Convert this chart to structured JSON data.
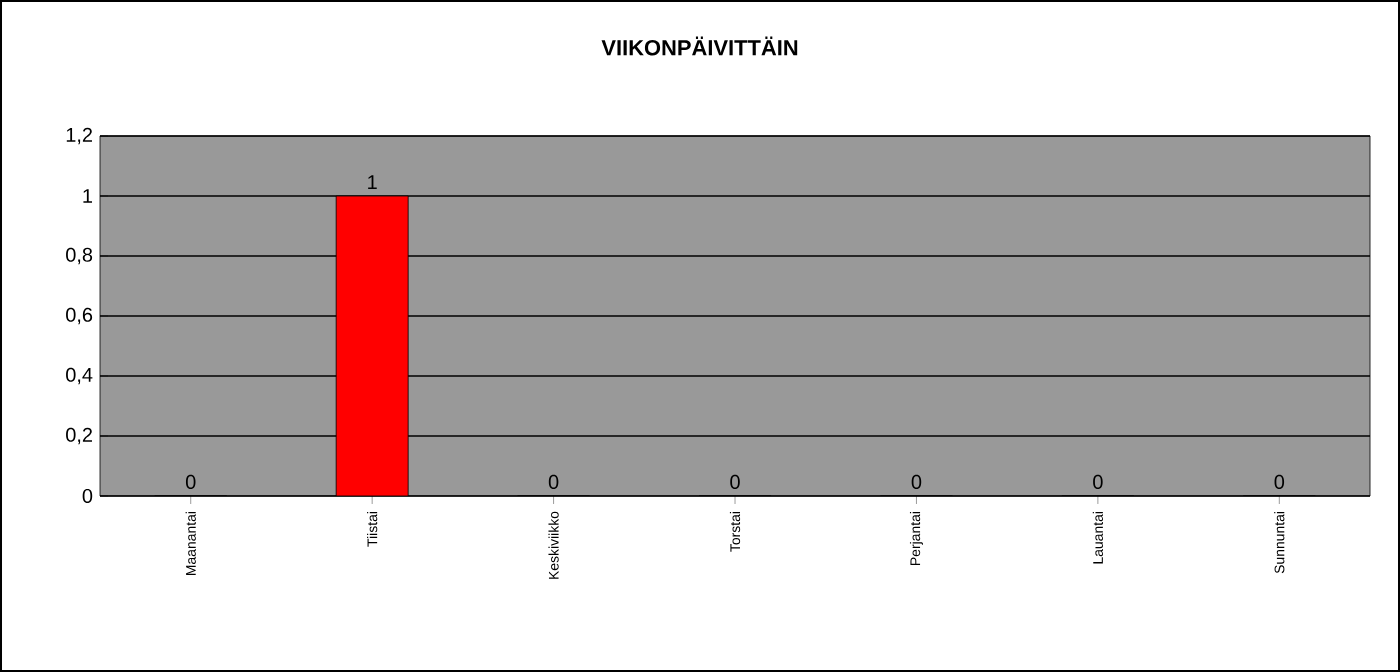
{
  "chart_data": {
    "type": "bar",
    "title": "VIIKONPÄIVITTÄIN",
    "categories": [
      "Maanantai",
      "Tiistai",
      "Keskiviikko",
      "Torstai",
      "Perjantai",
      "Lauantai",
      "Sunnuntai"
    ],
    "values": [
      0,
      1,
      0,
      0,
      0,
      0,
      0
    ],
    "colors": [
      "#ff0000",
      "#ff0000",
      "#ff0000",
      "#ff0000",
      "#ff0000",
      "#ff0000",
      "#ff0000"
    ],
    "ylim": [
      0,
      1.2
    ],
    "yticks": [
      0,
      {
        "value": 0.2,
        "label": "0,2"
      },
      {
        "value": 0.4,
        "label": "0,4"
      },
      {
        "value": 0.6,
        "label": "0,6"
      },
      {
        "value": 0.8,
        "label": "0,8"
      },
      1,
      {
        "value": 1.2,
        "label": "1,2"
      }
    ],
    "grid": "y",
    "data_labels": true
  }
}
